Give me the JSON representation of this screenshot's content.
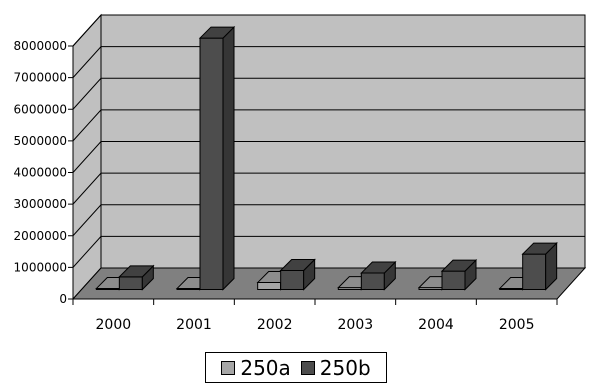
{
  "chart_data": {
    "type": "bar",
    "subtype": "3d-clustered-column",
    "title": "",
    "xlabel": "",
    "ylabel": "",
    "categories": [
      "2000",
      "2001",
      "2002",
      "2003",
      "2004",
      "2005"
    ],
    "series": [
      {
        "name": "250a",
        "color": "#a6a6a6",
        "values": [
          30000,
          30000,
          220000,
          60000,
          60000,
          30000
        ]
      },
      {
        "name": "250b",
        "color": "#4d4d4d",
        "values": [
          400000,
          7950000,
          600000,
          520000,
          580000,
          1120000
        ]
      }
    ],
    "ylim": [
      0,
      8000000
    ],
    "yticks": [
      "0",
      "1000000",
      "2000000",
      "3000000",
      "4000000",
      "5000000",
      "6000000",
      "7000000",
      "8000000"
    ],
    "grid": true,
    "legend_position": "bottom",
    "wall_color": "#c0c0c0",
    "floor_color": "#808080"
  }
}
